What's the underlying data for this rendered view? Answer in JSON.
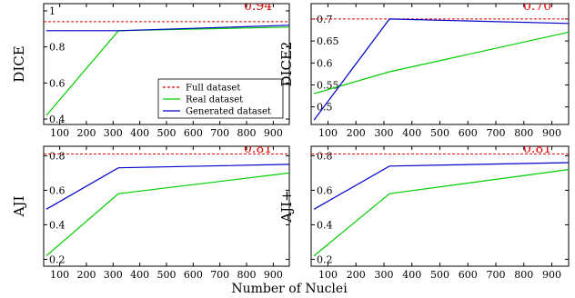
{
  "chart_data": [
    {
      "type": "line",
      "ylabel": "DICE",
      "xlim": [
        40,
        960
      ],
      "ylim": [
        0.37,
        1.04
      ],
      "xticks": [
        100,
        200,
        300,
        400,
        500,
        600,
        700,
        800,
        900
      ],
      "yticks": [
        0.4,
        0.6,
        0.8,
        1
      ],
      "ytick_labels": [
        "0.4",
        "0.6",
        "0.8",
        "1"
      ],
      "ref_line": {
        "value": 0.94,
        "label": "0.94",
        "color": "#e00000"
      },
      "series": [
        {
          "name": "Real dataset",
          "color": "#00cc00",
          "x": [
            50,
            320,
            960
          ],
          "y": [
            0.42,
            0.89,
            0.91
          ]
        },
        {
          "name": "Generated dataset",
          "color": "#0000cc",
          "x": [
            50,
            320,
            960
          ],
          "y": [
            0.89,
            0.89,
            0.92
          ]
        }
      ],
      "legend": {
        "position": "bottom-right",
        "entries": [
          {
            "label": "Full dataset",
            "color": "#e00000",
            "dashed": true
          },
          {
            "label": "Real dataset",
            "color": "#00cc00",
            "dashed": false
          },
          {
            "label": "Generated dataset",
            "color": "#0000cc",
            "dashed": false
          }
        ]
      }
    },
    {
      "type": "line",
      "ylabel": "DICE2",
      "xlim": [
        40,
        960
      ],
      "ylim": [
        0.46,
        0.735
      ],
      "xticks": [
        100,
        200,
        300,
        400,
        500,
        600,
        700,
        800,
        900
      ],
      "yticks": [
        0.5,
        0.55,
        0.6,
        0.65,
        0.7
      ],
      "ytick_labels": [
        "0.5",
        "0.55",
        "0.6",
        "0.65",
        "0.7"
      ],
      "ref_line": {
        "value": 0.7,
        "label": "0.70",
        "color": "#e00000"
      },
      "series": [
        {
          "name": "Real dataset",
          "color": "#00cc00",
          "x": [
            50,
            320,
            960
          ],
          "y": [
            0.53,
            0.58,
            0.67
          ]
        },
        {
          "name": "Generated dataset",
          "color": "#0000cc",
          "x": [
            50,
            320,
            960
          ],
          "y": [
            0.47,
            0.7,
            0.69
          ]
        }
      ]
    },
    {
      "type": "line",
      "ylabel": "AJI",
      "xlim": [
        40,
        960
      ],
      "ylim": [
        0.16,
        0.855
      ],
      "xticks": [
        100,
        200,
        300,
        400,
        500,
        600,
        700,
        800,
        900
      ],
      "yticks": [
        0.2,
        0.4,
        0.6,
        0.8
      ],
      "ytick_labels": [
        "0.2",
        "0.4",
        "0.6",
        "0.8"
      ],
      "ref_line": {
        "value": 0.81,
        "label": "0.81",
        "color": "#e00000"
      },
      "series": [
        {
          "name": "Real dataset",
          "color": "#00cc00",
          "x": [
            50,
            320,
            960
          ],
          "y": [
            0.22,
            0.58,
            0.7
          ]
        },
        {
          "name": "Generated dataset",
          "color": "#0000cc",
          "x": [
            50,
            320,
            960
          ],
          "y": [
            0.49,
            0.73,
            0.75
          ]
        }
      ]
    },
    {
      "type": "line",
      "ylabel": "AJI+",
      "xlim": [
        40,
        960
      ],
      "ylim": [
        0.16,
        0.855
      ],
      "xticks": [
        100,
        200,
        300,
        400,
        500,
        600,
        700,
        800,
        900
      ],
      "yticks": [
        0.2,
        0.4,
        0.6,
        0.8
      ],
      "ytick_labels": [
        "0.2",
        "0.4",
        "0.6",
        "0.8"
      ],
      "ref_line": {
        "value": 0.81,
        "label": "0.81",
        "color": "#e00000"
      },
      "series": [
        {
          "name": "Real dataset",
          "color": "#00cc00",
          "x": [
            50,
            320,
            960
          ],
          "y": [
            0.22,
            0.58,
            0.72
          ]
        },
        {
          "name": "Generated dataset",
          "color": "#0000cc",
          "x": [
            50,
            320,
            960
          ],
          "y": [
            0.49,
            0.74,
            0.76
          ]
        }
      ]
    }
  ],
  "xlabel": "Number of Nuclei"
}
